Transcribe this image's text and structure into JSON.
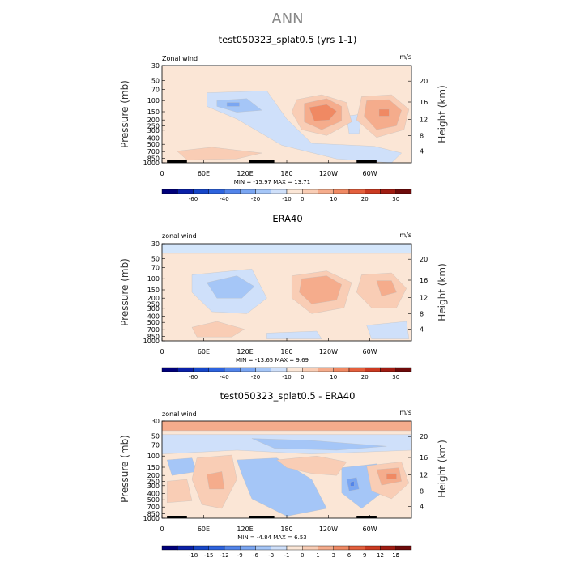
{
  "main_title": "ANN",
  "chart_data": [
    {
      "type": "heatmap",
      "title": "test050323_splat0.5 (yrs 1-1)",
      "variable_label": "Zonal wind",
      "units_label": "m/s",
      "ylabel": "Pressure (mb)",
      "y2label": "Height (km)",
      "x_ticks": [
        "0",
        "60E",
        "120E",
        "180",
        "120W",
        "60W"
      ],
      "y_ticks": [
        "30",
        "50",
        "70",
        "100",
        "150",
        "200",
        "250",
        "300",
        "400",
        "500",
        "700",
        "850",
        "1000"
      ],
      "y2_ticks": [
        "20",
        "16",
        "12",
        "8",
        "4"
      ],
      "min_max": "MIN = -15.97   MAX =  13.71",
      "colorbar_labels": [
        "-60",
        "-40",
        "-20",
        "-10",
        "0",
        "10",
        "20",
        "30"
      ],
      "colorbar_colors": [
        "#00007a",
        "#0a20a8",
        "#1646c8",
        "#2d63de",
        "#5284ea",
        "#7aa6f2",
        "#a5c6f7",
        "#cfe0fa",
        "#fbe6d6",
        "#f9cdb5",
        "#f5ac8c",
        "#f08963",
        "#e4603d",
        "#cb3a21",
        "#a01c12",
        "#6e0a0a"
      ],
      "contours": [
        {
          "color": "#cfe0fa",
          "points": [
            [
              0.18,
              0.28
            ],
            [
              0.42,
              0.26
            ],
            [
              0.5,
              0.55
            ],
            [
              0.6,
              0.8
            ],
            [
              0.85,
              0.83
            ],
            [
              0.96,
              0.9
            ],
            [
              0.92,
              1.0
            ],
            [
              0.7,
              0.96
            ],
            [
              0.48,
              0.82
            ],
            [
              0.3,
              0.55
            ],
            [
              0.18,
              0.42
            ]
          ]
        },
        {
          "color": "#cfe0fa",
          "points": [
            [
              0.74,
              0.52
            ],
            [
              0.8,
              0.5
            ],
            [
              0.79,
              0.7
            ],
            [
              0.75,
              0.7
            ]
          ]
        },
        {
          "color": "#a5c6f7",
          "points": [
            [
              0.22,
              0.36
            ],
            [
              0.34,
              0.34
            ],
            [
              0.4,
              0.46
            ],
            [
              0.3,
              0.48
            ],
            [
              0.22,
              0.42
            ]
          ]
        },
        {
          "color": "#7aa6f2",
          "points": [
            [
              0.26,
              0.38
            ],
            [
              0.31,
              0.38
            ],
            [
              0.31,
              0.42
            ],
            [
              0.26,
              0.42
            ]
          ]
        },
        {
          "color": "#f9cdb5",
          "points": [
            [
              0.54,
              0.35
            ],
            [
              0.64,
              0.3
            ],
            [
              0.74,
              0.38
            ],
            [
              0.76,
              0.58
            ],
            [
              0.66,
              0.72
            ],
            [
              0.56,
              0.66
            ],
            [
              0.52,
              0.48
            ]
          ]
        },
        {
          "color": "#f9cdb5",
          "points": [
            [
              0.8,
              0.32
            ],
            [
              0.92,
              0.3
            ],
            [
              0.99,
              0.45
            ],
            [
              0.97,
              0.66
            ],
            [
              0.86,
              0.74
            ],
            [
              0.78,
              0.56
            ]
          ]
        },
        {
          "color": "#f5ac8c",
          "points": [
            [
              0.57,
              0.39
            ],
            [
              0.66,
              0.34
            ],
            [
              0.72,
              0.42
            ],
            [
              0.72,
              0.57
            ],
            [
              0.64,
              0.66
            ],
            [
              0.57,
              0.58
            ]
          ]
        },
        {
          "color": "#f5ac8c",
          "points": [
            [
              0.82,
              0.36
            ],
            [
              0.91,
              0.35
            ],
            [
              0.96,
              0.46
            ],
            [
              0.94,
              0.62
            ],
            [
              0.86,
              0.66
            ],
            [
              0.81,
              0.52
            ]
          ]
        },
        {
          "color": "#f08963",
          "points": [
            [
              0.59,
              0.43
            ],
            [
              0.66,
              0.4
            ],
            [
              0.7,
              0.47
            ],
            [
              0.67,
              0.56
            ],
            [
              0.61,
              0.57
            ]
          ]
        },
        {
          "color": "#f08963",
          "points": [
            [
              0.87,
              0.45
            ],
            [
              0.91,
              0.45
            ],
            [
              0.91,
              0.52
            ],
            [
              0.87,
              0.52
            ]
          ]
        },
        {
          "color": "#f9cdb5",
          "points": [
            [
              0.06,
              0.88
            ],
            [
              0.2,
              0.84
            ],
            [
              0.4,
              0.9
            ],
            [
              0.3,
              0.96
            ],
            [
              0.1,
              0.97
            ]
          ]
        }
      ],
      "topography": [
        [
          0.02,
          0.1
        ],
        [
          0.35,
          0.45
        ],
        [
          0.78,
          0.86
        ]
      ]
    },
    {
      "type": "heatmap",
      "title": "ERA40",
      "variable_label": "zonal wind",
      "units_label": "m/s",
      "ylabel": "Pressure (mb)",
      "y2label": "Height (km)",
      "x_ticks": [
        "0",
        "60E",
        "120E",
        "180",
        "120W",
        "60W"
      ],
      "y_ticks": [
        "30",
        "50",
        "70",
        "100",
        "150",
        "200",
        "250",
        "300",
        "400",
        "500",
        "700",
        "850",
        "1000"
      ],
      "y2_ticks": [
        "20",
        "16",
        "12",
        "8",
        "4"
      ],
      "min_max": "MIN = -13.65   MAX =   9.69",
      "colorbar_labels": [
        "-60",
        "-40",
        "-20",
        "-10",
        "0",
        "10",
        "20",
        "30"
      ],
      "colorbar_colors": [
        "#00007a",
        "#0a20a8",
        "#1646c8",
        "#2d63de",
        "#5284ea",
        "#7aa6f2",
        "#a5c6f7",
        "#cfe0fa",
        "#fbe6d6",
        "#f9cdb5",
        "#f5ac8c",
        "#f08963",
        "#e4603d",
        "#cb3a21",
        "#a01c12",
        "#6e0a0a"
      ],
      "contours": [
        {
          "color": "#d4e6fb",
          "points": [
            [
              0,
              0
            ],
            [
              1,
              0
            ],
            [
              1,
              0.1
            ],
            [
              0,
              0.1
            ]
          ]
        },
        {
          "color": "#cfe0fa",
          "points": [
            [
              0.12,
              0.32
            ],
            [
              0.36,
              0.26
            ],
            [
              0.42,
              0.56
            ],
            [
              0.34,
              0.72
            ],
            [
              0.2,
              0.7
            ],
            [
              0.12,
              0.5
            ]
          ]
        },
        {
          "color": "#a5c6f7",
          "points": [
            [
              0.18,
              0.4
            ],
            [
              0.3,
              0.33
            ],
            [
              0.37,
              0.44
            ],
            [
              0.32,
              0.56
            ],
            [
              0.22,
              0.56
            ]
          ]
        },
        {
          "color": "#cfe0fa",
          "points": [
            [
              0.82,
              0.84
            ],
            [
              0.98,
              0.8
            ],
            [
              0.99,
              0.98
            ],
            [
              0.84,
              0.98
            ]
          ]
        },
        {
          "color": "#cfe0fa",
          "points": [
            [
              0.42,
              0.92
            ],
            [
              0.62,
              0.9
            ],
            [
              0.64,
              0.98
            ],
            [
              0.42,
              0.98
            ]
          ]
        },
        {
          "color": "#f9cdb5",
          "points": [
            [
              0.52,
              0.33
            ],
            [
              0.66,
              0.28
            ],
            [
              0.76,
              0.4
            ],
            [
              0.73,
              0.66
            ],
            [
              0.6,
              0.72
            ],
            [
              0.52,
              0.56
            ]
          ]
        },
        {
          "color": "#f9cdb5",
          "points": [
            [
              0.8,
              0.32
            ],
            [
              0.92,
              0.3
            ],
            [
              0.98,
              0.46
            ],
            [
              0.94,
              0.66
            ],
            [
              0.84,
              0.66
            ],
            [
              0.78,
              0.5
            ]
          ]
        },
        {
          "color": "#f5ac8c",
          "points": [
            [
              0.56,
              0.36
            ],
            [
              0.66,
              0.33
            ],
            [
              0.72,
              0.42
            ],
            [
              0.7,
              0.58
            ],
            [
              0.6,
              0.62
            ],
            [
              0.55,
              0.5
            ]
          ]
        },
        {
          "color": "#f5ac8c",
          "points": [
            [
              0.86,
              0.38
            ],
            [
              0.92,
              0.38
            ],
            [
              0.94,
              0.5
            ],
            [
              0.88,
              0.54
            ]
          ]
        },
        {
          "color": "#f9cdb5",
          "points": [
            [
              0.12,
              0.86
            ],
            [
              0.22,
              0.8
            ],
            [
              0.33,
              0.88
            ],
            [
              0.28,
              0.96
            ],
            [
              0.14,
              0.96
            ]
          ]
        }
      ],
      "topography": []
    },
    {
      "type": "heatmap",
      "title": "test050323_splat0.5 - ERA40",
      "variable_label": "zonal wind",
      "units_label": "m/s",
      "ylabel": "Pressure (mb)",
      "y2label": "Height (km)",
      "x_ticks": [
        "0",
        "60E",
        "120E",
        "180",
        "120W",
        "60W"
      ],
      "y_ticks": [
        "30",
        "50",
        "70",
        "100",
        "150",
        "200",
        "250",
        "300",
        "400",
        "500",
        "700",
        "850",
        "1000"
      ],
      "y2_ticks": [
        "20",
        "16",
        "12",
        "8",
        "4"
      ],
      "min_max": "MIN =  -4.84   MAX =   6.53",
      "colorbar_labels": [
        "-18",
        "-15",
        "-12",
        "-9",
        "-6",
        "-3",
        "-1",
        "0",
        "1",
        "3",
        "6",
        "9",
        "12",
        "15",
        "18"
      ],
      "colorbar_colors": [
        "#00007a",
        "#0a20a8",
        "#1646c8",
        "#2d63de",
        "#5284ea",
        "#7aa6f2",
        "#a5c6f7",
        "#cfe0fa",
        "#fbe6d6",
        "#f9cdb5",
        "#f5ac8c",
        "#f08963",
        "#e4603d",
        "#cb3a21",
        "#a01c12",
        "#6e0a0a"
      ],
      "contours": [
        {
          "color": "#f5ac8c",
          "points": [
            [
              0,
              0
            ],
            [
              1,
              0
            ],
            [
              1,
              0.1
            ],
            [
              0,
              0.1
            ]
          ]
        },
        {
          "color": "#fbe6d6",
          "points": [
            [
              0,
              0.1
            ],
            [
              1,
              0.1
            ],
            [
              1,
              0.14
            ],
            [
              0,
              0.14
            ]
          ]
        },
        {
          "color": "#cfe0fa",
          "points": [
            [
              0,
              0.14
            ],
            [
              1,
              0.14
            ],
            [
              1,
              0.3
            ],
            [
              0.6,
              0.34
            ],
            [
              0.3,
              0.3
            ],
            [
              0,
              0.34
            ]
          ]
        },
        {
          "color": "#a5c6f7",
          "points": [
            [
              0.36,
              0.18
            ],
            [
              0.6,
              0.2
            ],
            [
              0.9,
              0.26
            ],
            [
              0.7,
              0.3
            ],
            [
              0.45,
              0.28
            ]
          ]
        },
        {
          "color": "#a5c6f7",
          "points": [
            [
              0.3,
              0.4
            ],
            [
              0.46,
              0.38
            ],
            [
              0.6,
              0.6
            ],
            [
              0.66,
              0.9
            ],
            [
              0.5,
              0.98
            ],
            [
              0.36,
              0.8
            ],
            [
              0.32,
              0.55
            ]
          ]
        },
        {
          "color": "#a5c6f7",
          "points": [
            [
              0.72,
              0.48
            ],
            [
              0.86,
              0.44
            ],
            [
              0.9,
              0.7
            ],
            [
              0.8,
              0.9
            ],
            [
              0.72,
              0.74
            ]
          ]
        },
        {
          "color": "#a5c6f7",
          "points": [
            [
              0.02,
              0.4
            ],
            [
              0.12,
              0.38
            ],
            [
              0.14,
              0.52
            ],
            [
              0.04,
              0.56
            ]
          ]
        },
        {
          "color": "#7aa6f2",
          "points": [
            [
              0.74,
              0.6
            ],
            [
              0.78,
              0.58
            ],
            [
              0.79,
              0.7
            ],
            [
              0.75,
              0.72
            ]
          ]
        },
        {
          "color": "#5284ea",
          "points": [
            [
              0.755,
              0.63
            ],
            [
              0.77,
              0.62
            ],
            [
              0.77,
              0.67
            ],
            [
              0.755,
              0.67
            ]
          ]
        },
        {
          "color": "#f9cdb5",
          "points": [
            [
              0.14,
              0.38
            ],
            [
              0.28,
              0.35
            ],
            [
              0.3,
              0.6
            ],
            [
              0.24,
              0.9
            ],
            [
              0.16,
              0.86
            ],
            [
              0.12,
              0.6
            ]
          ]
        },
        {
          "color": "#f9cdb5",
          "points": [
            [
              0.46,
              0.4
            ],
            [
              0.62,
              0.36
            ],
            [
              0.74,
              0.42
            ],
            [
              0.7,
              0.56
            ],
            [
              0.6,
              0.54
            ],
            [
              0.5,
              0.48
            ]
          ]
        },
        {
          "color": "#f9cdb5",
          "points": [
            [
              0.82,
              0.46
            ],
            [
              0.96,
              0.42
            ],
            [
              0.99,
              0.64
            ],
            [
              0.92,
              0.8
            ],
            [
              0.84,
              0.72
            ]
          ]
        },
        {
          "color": "#f5ac8c",
          "points": [
            [
              0.86,
              0.5
            ],
            [
              0.95,
              0.48
            ],
            [
              0.96,
              0.62
            ],
            [
              0.88,
              0.66
            ]
          ]
        },
        {
          "color": "#f5ac8c",
          "points": [
            [
              0.18,
              0.55
            ],
            [
              0.24,
              0.52
            ],
            [
              0.25,
              0.7
            ],
            [
              0.19,
              0.7
            ]
          ]
        },
        {
          "color": "#f08963",
          "points": [
            [
              0.9,
              0.54
            ],
            [
              0.94,
              0.54
            ],
            [
              0.94,
              0.6
            ],
            [
              0.9,
              0.6
            ]
          ]
        },
        {
          "color": "#f9cdb5",
          "points": [
            [
              0.02,
              0.62
            ],
            [
              0.1,
              0.6
            ],
            [
              0.12,
              0.82
            ],
            [
              0.02,
              0.84
            ]
          ]
        }
      ],
      "topography": [
        [
          0.02,
          0.1
        ],
        [
          0.35,
          0.45
        ],
        [
          0.78,
          0.86
        ]
      ]
    }
  ]
}
